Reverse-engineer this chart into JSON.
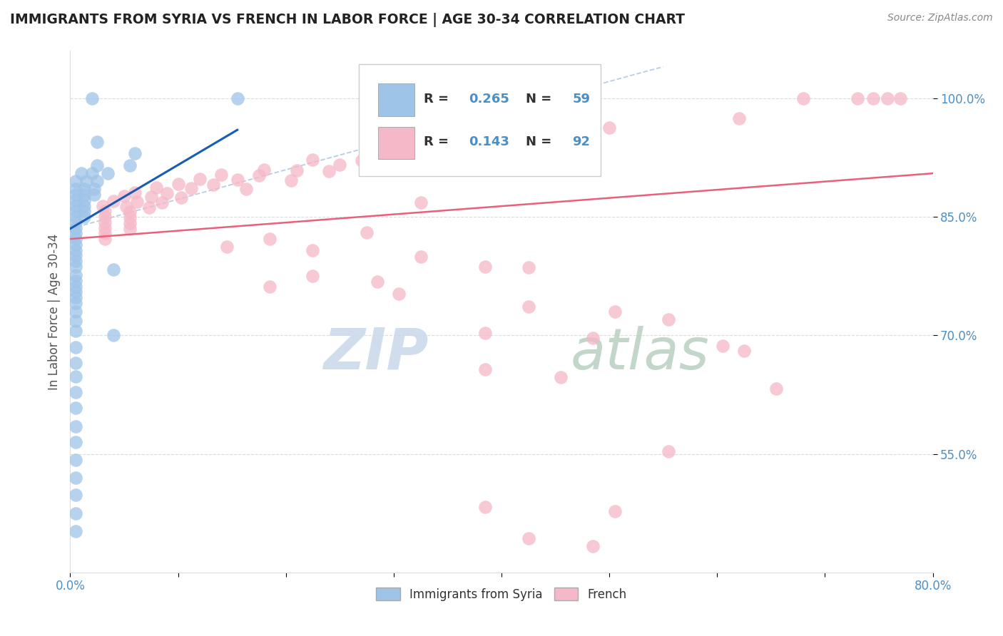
{
  "title": "IMMIGRANTS FROM SYRIA VS FRENCH IN LABOR FORCE | AGE 30-34 CORRELATION CHART",
  "source": "Source: ZipAtlas.com",
  "ylabel": "In Labor Force | Age 30-34",
  "xlim": [
    0.0,
    0.8
  ],
  "ylim": [
    0.4,
    1.06
  ],
  "xticks": [
    0.0,
    0.1,
    0.2,
    0.3,
    0.4,
    0.5,
    0.6,
    0.7,
    0.8
  ],
  "xticklabels": [
    "0.0%",
    "",
    "",
    "",
    "",
    "",
    "",
    "",
    "80.0%"
  ],
  "yticks": [
    0.55,
    0.7,
    0.85,
    1.0
  ],
  "yticklabels": [
    "55.0%",
    "70.0%",
    "85.0%",
    "100.0%"
  ],
  "r_blue": "0.265",
  "n_blue": "59",
  "r_pink": "0.143",
  "n_pink": "92",
  "blue_color": "#9ec4e8",
  "pink_color": "#f5b8c8",
  "blue_line_color": "#1a5cb0",
  "pink_line_color": "#e8607a",
  "dashed_line_color": "#b0c8e0",
  "tick_color": "#4a90c8",
  "scatter_blue": [
    [
      0.02,
      1.0
    ],
    [
      0.155,
      1.0
    ],
    [
      0.025,
      0.945
    ],
    [
      0.06,
      0.93
    ],
    [
      0.025,
      0.915
    ],
    [
      0.055,
      0.915
    ],
    [
      0.01,
      0.905
    ],
    [
      0.02,
      0.905
    ],
    [
      0.035,
      0.905
    ],
    [
      0.005,
      0.895
    ],
    [
      0.015,
      0.895
    ],
    [
      0.025,
      0.895
    ],
    [
      0.005,
      0.885
    ],
    [
      0.013,
      0.885
    ],
    [
      0.022,
      0.885
    ],
    [
      0.005,
      0.878
    ],
    [
      0.013,
      0.878
    ],
    [
      0.022,
      0.878
    ],
    [
      0.005,
      0.871
    ],
    [
      0.013,
      0.871
    ],
    [
      0.005,
      0.864
    ],
    [
      0.013,
      0.864
    ],
    [
      0.005,
      0.857
    ],
    [
      0.013,
      0.857
    ],
    [
      0.005,
      0.85
    ],
    [
      0.013,
      0.85
    ],
    [
      0.005,
      0.843
    ],
    [
      0.005,
      0.836
    ],
    [
      0.005,
      0.829
    ],
    [
      0.005,
      0.822
    ],
    [
      0.005,
      0.815
    ],
    [
      0.005,
      0.808
    ],
    [
      0.005,
      0.801
    ],
    [
      0.005,
      0.794
    ],
    [
      0.005,
      0.787
    ],
    [
      0.04,
      0.783
    ],
    [
      0.005,
      0.776
    ],
    [
      0.005,
      0.769
    ],
    [
      0.005,
      0.762
    ],
    [
      0.005,
      0.755
    ],
    [
      0.005,
      0.748
    ],
    [
      0.005,
      0.741
    ],
    [
      0.005,
      0.73
    ],
    [
      0.005,
      0.718
    ],
    [
      0.005,
      0.706
    ],
    [
      0.04,
      0.7
    ],
    [
      0.005,
      0.685
    ],
    [
      0.005,
      0.665
    ],
    [
      0.005,
      0.648
    ],
    [
      0.005,
      0.628
    ],
    [
      0.005,
      0.608
    ],
    [
      0.005,
      0.585
    ],
    [
      0.005,
      0.565
    ],
    [
      0.005,
      0.542
    ],
    [
      0.005,
      0.52
    ],
    [
      0.005,
      0.498
    ],
    [
      0.005,
      0.475
    ],
    [
      0.005,
      0.452
    ]
  ],
  "scatter_pink": [
    [
      0.68,
      1.0
    ],
    [
      0.73,
      1.0
    ],
    [
      0.745,
      1.0
    ],
    [
      0.758,
      1.0
    ],
    [
      0.77,
      1.0
    ],
    [
      0.62,
      0.975
    ],
    [
      0.38,
      0.965
    ],
    [
      0.5,
      0.963
    ],
    [
      0.28,
      0.953
    ],
    [
      0.335,
      0.951
    ],
    [
      0.3,
      0.938
    ],
    [
      0.365,
      0.936
    ],
    [
      0.4,
      0.929
    ],
    [
      0.225,
      0.922
    ],
    [
      0.27,
      0.921
    ],
    [
      0.25,
      0.916
    ],
    [
      0.18,
      0.91
    ],
    [
      0.21,
      0.909
    ],
    [
      0.24,
      0.908
    ],
    [
      0.14,
      0.903
    ],
    [
      0.175,
      0.902
    ],
    [
      0.12,
      0.898
    ],
    [
      0.155,
      0.897
    ],
    [
      0.205,
      0.896
    ],
    [
      0.1,
      0.892
    ],
    [
      0.133,
      0.891
    ],
    [
      0.08,
      0.887
    ],
    [
      0.112,
      0.886
    ],
    [
      0.163,
      0.885
    ],
    [
      0.06,
      0.881
    ],
    [
      0.09,
      0.88
    ],
    [
      0.05,
      0.876
    ],
    [
      0.075,
      0.875
    ],
    [
      0.103,
      0.874
    ],
    [
      0.04,
      0.87
    ],
    [
      0.062,
      0.869
    ],
    [
      0.085,
      0.868
    ],
    [
      0.325,
      0.868
    ],
    [
      0.03,
      0.864
    ],
    [
      0.052,
      0.863
    ],
    [
      0.073,
      0.862
    ],
    [
      0.032,
      0.857
    ],
    [
      0.055,
      0.856
    ],
    [
      0.032,
      0.85
    ],
    [
      0.055,
      0.849
    ],
    [
      0.032,
      0.843
    ],
    [
      0.055,
      0.842
    ],
    [
      0.032,
      0.836
    ],
    [
      0.055,
      0.835
    ],
    [
      0.032,
      0.829
    ],
    [
      0.032,
      0.822
    ],
    [
      0.275,
      0.83
    ],
    [
      0.185,
      0.822
    ],
    [
      0.145,
      0.812
    ],
    [
      0.225,
      0.808
    ],
    [
      0.325,
      0.8
    ],
    [
      0.385,
      0.787
    ],
    [
      0.425,
      0.786
    ],
    [
      0.225,
      0.775
    ],
    [
      0.285,
      0.768
    ],
    [
      0.185,
      0.762
    ],
    [
      0.305,
      0.753
    ],
    [
      0.425,
      0.736
    ],
    [
      0.505,
      0.73
    ],
    [
      0.555,
      0.72
    ],
    [
      0.385,
      0.703
    ],
    [
      0.485,
      0.697
    ],
    [
      0.605,
      0.687
    ],
    [
      0.625,
      0.68
    ],
    [
      0.385,
      0.657
    ],
    [
      0.455,
      0.647
    ],
    [
      0.655,
      0.633
    ],
    [
      0.555,
      0.553
    ],
    [
      0.385,
      0.483
    ],
    [
      0.505,
      0.477
    ],
    [
      0.425,
      0.443
    ],
    [
      0.485,
      0.433
    ]
  ],
  "blue_line_x": [
    0.0,
    0.155
  ],
  "blue_line_y": [
    0.832,
    0.96
  ],
  "pink_line_x": [
    0.0,
    0.8
  ],
  "pink_line_y": [
    0.823,
    0.9
  ],
  "diag_line_x": [
    0.0,
    0.45
  ],
  "diag_line_y": [
    1.0,
    1.0
  ],
  "watermark_zip_color": "#c8d8ea",
  "watermark_atlas_color": "#b8d0c0"
}
